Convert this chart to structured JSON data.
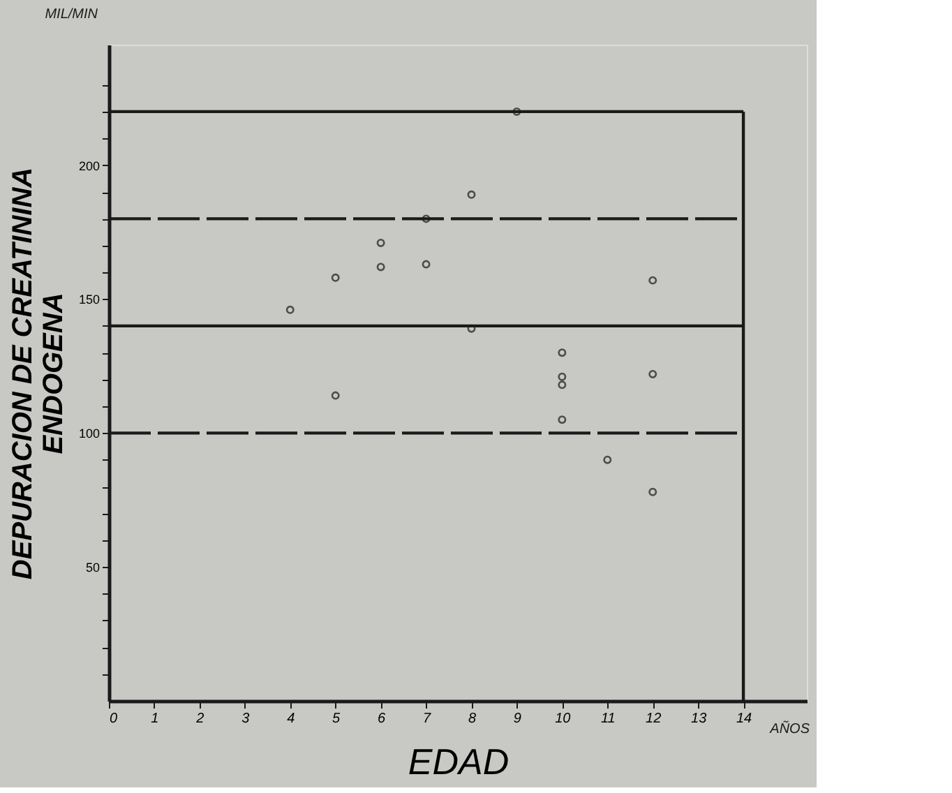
{
  "chart_data": {
    "type": "scatter",
    "xlabel": "EDAD",
    "ylabel": "DEPURACION DE CREATININA\nENDOGENA",
    "annotations": [
      "MIL/MIN",
      "AÑOS"
    ],
    "x": [
      9,
      8,
      7,
      6,
      6,
      7,
      5,
      12,
      4,
      8,
      10,
      10,
      10,
      10,
      5,
      12,
      11,
      12
    ],
    "values": [
      220,
      189,
      180,
      171,
      162,
      163,
      158,
      157,
      146,
      139,
      130,
      121,
      118,
      105,
      114,
      122,
      90,
      78
    ],
    "color": "#1a1a1a",
    "marker": "circle",
    "xlim": [
      0,
      15.4
    ],
    "xticks": [
      0,
      1,
      2,
      3,
      4,
      5,
      6,
      7,
      8,
      9,
      10,
      11,
      12,
      13,
      14
    ],
    "ylim": [
      0,
      245
    ],
    "yticks": [
      {
        "value": 10,
        "label": null
      },
      {
        "value": 20,
        "label": null
      },
      {
        "value": 30,
        "label": null
      },
      {
        "value": 40,
        "label": null
      },
      50,
      {
        "value": 60,
        "label": null
      },
      {
        "value": 70,
        "label": null
      },
      {
        "value": 80,
        "label": null
      },
      {
        "value": 90,
        "label": null
      },
      100,
      {
        "value": 110,
        "label": null
      },
      {
        "value": 120,
        "label": null
      },
      {
        "value": 130,
        "label": null
      },
      {
        "value": 140,
        "label": null
      },
      150,
      {
        "value": 160,
        "label": null
      },
      {
        "value": 170,
        "label": null
      },
      {
        "value": 180,
        "label": null
      },
      {
        "value": 190,
        "label": null
      },
      200,
      {
        "value": 210,
        "label": null
      },
      {
        "value": 220,
        "label": null
      },
      {
        "value": 230,
        "label": null
      }
    ],
    "ref_lines": [
      {
        "axis": "y",
        "value": 220,
        "line_style": "solid"
      },
      {
        "axis": "y",
        "value": 180,
        "line_style": "dashed"
      },
      {
        "axis": "y",
        "value": 140,
        "line_style": "solid"
      },
      {
        "axis": "y",
        "value": 100,
        "line_style": "dashed"
      },
      {
        "axis": "x",
        "value": 14,
        "line_style": "solid"
      }
    ],
    "grid": false
  }
}
